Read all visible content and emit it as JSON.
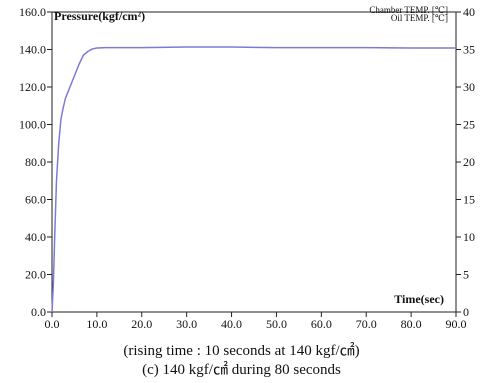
{
  "chart_data": {
    "type": "line",
    "ylabel": "Pressure(kgf/cm²)",
    "xlabel": "Time(sec)",
    "legend": [
      "Chamber TEMP. [℃]",
      "Oil TEMP. [℃]"
    ],
    "legend_placement": "top-right",
    "xlim": [
      0,
      90
    ],
    "ylim": [
      0,
      160
    ],
    "y2lim": [
      0,
      40
    ],
    "x_ticks": [
      "0.0",
      "10.0",
      "20.0",
      "30.0",
      "40.0",
      "50.0",
      "60.0",
      "70.0",
      "80.0",
      "90.0"
    ],
    "y_ticks": [
      "0.0",
      "20.0",
      "40.0",
      "60.0",
      "80.0",
      "100.0",
      "120.0",
      "140.0",
      "160.0"
    ],
    "y2_ticks": [
      "0",
      "5",
      "10",
      "15",
      "20",
      "25",
      "30",
      "35",
      "40"
    ],
    "series": [
      {
        "name": "Pressure(kgf/cm²)",
        "color": "#7b7bd6",
        "x": [
          0,
          0.3,
          0.6,
          1.0,
          1.5,
          2.0,
          2.5,
          3.0,
          4.0,
          5.0,
          6.0,
          7.0,
          8.0,
          9.0,
          10.0,
          12.0,
          15.0,
          20.0,
          30.0,
          40.0,
          50.0,
          60.0,
          70.0,
          80.0,
          90.0
        ],
        "y": [
          0,
          15,
          40,
          70,
          90,
          103,
          109,
          114,
          120,
          126,
          132,
          137,
          139,
          140.3,
          140.8,
          141,
          141,
          141,
          141.3,
          141.3,
          141,
          141,
          141,
          140.8,
          140.8
        ]
      }
    ]
  },
  "caption": {
    "line1": "(rising time : 10 seconds at 140 kgf/㎠)",
    "line2": "(c) 140 kgf/㎠ during 80 seconds"
  }
}
